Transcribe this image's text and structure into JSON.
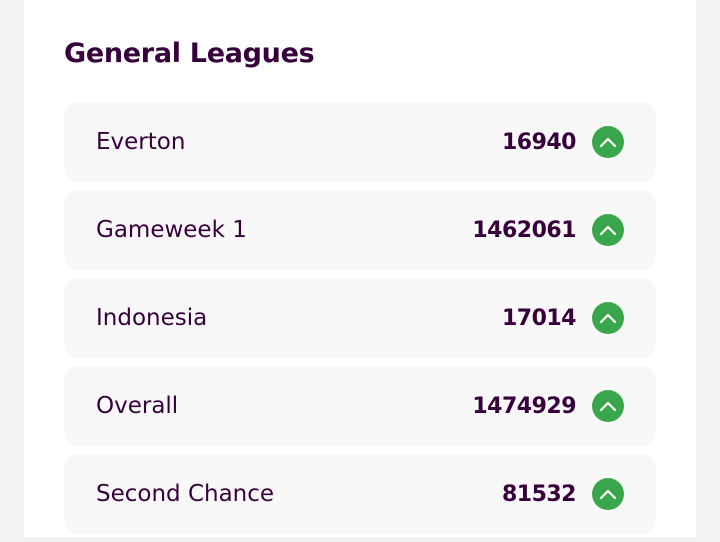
{
  "section": {
    "title": "General Leagues"
  },
  "leagues": [
    {
      "name": "Everton",
      "rank": "16940",
      "movement": "up",
      "movement_icon": "chevron-up-icon",
      "movement_color": "#3aa64c"
    },
    {
      "name": "Gameweek 1",
      "rank": "1462061",
      "movement": "up",
      "movement_icon": "chevron-up-icon",
      "movement_color": "#3aa64c"
    },
    {
      "name": "Indonesia",
      "rank": "17014",
      "movement": "up",
      "movement_icon": "chevron-up-icon",
      "movement_color": "#3aa64c"
    },
    {
      "name": "Overall",
      "rank": "1474929",
      "movement": "up",
      "movement_icon": "chevron-up-icon",
      "movement_color": "#3aa64c"
    },
    {
      "name": "Second Chance",
      "rank": "81532",
      "movement": "up",
      "movement_icon": "chevron-up-icon",
      "movement_color": "#3aa64c"
    }
  ],
  "colors": {
    "text_primary": "#37003c",
    "row_background": "#f8f8f8",
    "card_background": "#ffffff",
    "page_background": "#f2f2f2"
  }
}
